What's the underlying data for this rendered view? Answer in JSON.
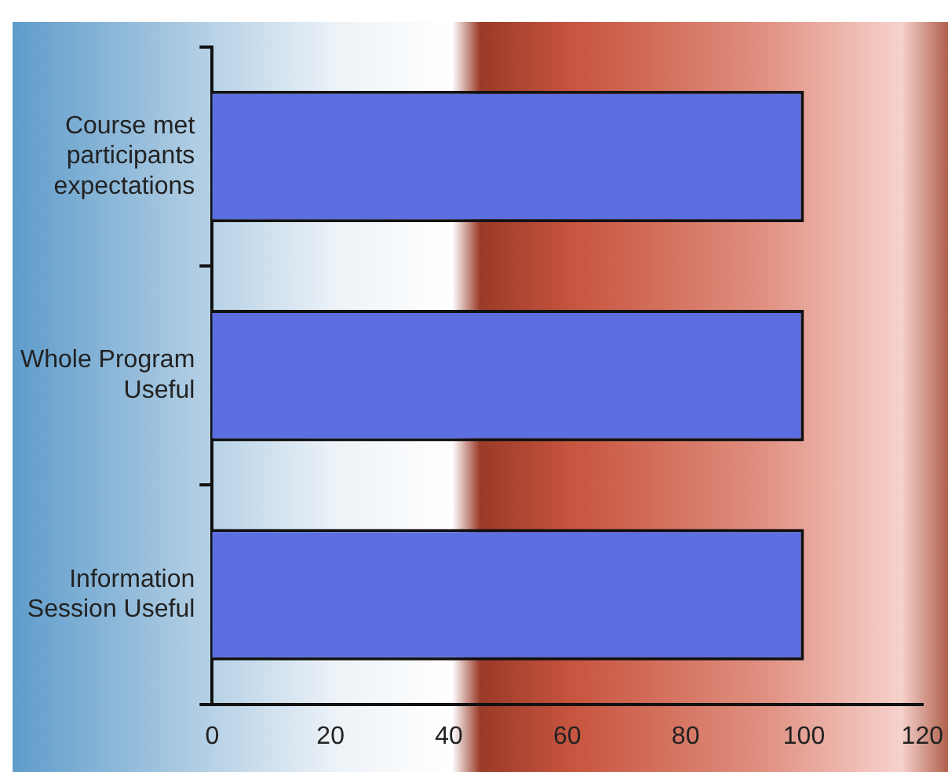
{
  "chart_data": {
    "type": "bar",
    "orientation": "horizontal",
    "categories": [
      "Course met participants expectations",
      "Whole Program Useful",
      "Information Session Useful"
    ],
    "values": [
      100,
      100,
      100
    ],
    "color": "#5b6fe0",
    "xlim": [
      0,
      120
    ],
    "xticks": [
      0,
      20,
      40,
      60,
      80,
      100,
      120
    ],
    "grid": false,
    "legend": false
  }
}
